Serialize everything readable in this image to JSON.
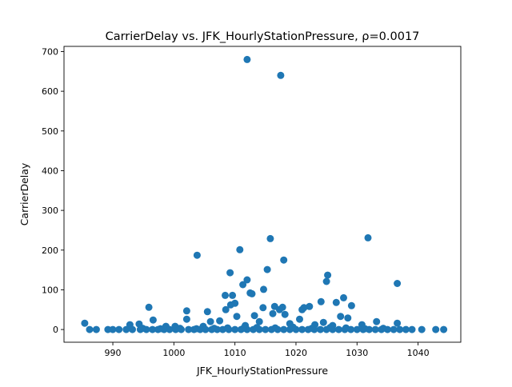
{
  "chart_data": {
    "type": "scatter",
    "title": "CarrierDelay vs. JFK_HourlyStationPressure, ρ=0.0017",
    "xlabel": "JFK_HourlyStationPressure",
    "ylabel": "CarrierDelay",
    "xlim": [
      982.0,
      1047.0
    ],
    "ylim": [
      -32.0,
      713.0
    ],
    "xticks": [
      990,
      1000,
      1010,
      1020,
      1030,
      1040
    ],
    "yticks": [
      0,
      100,
      200,
      300,
      400,
      500,
      600,
      700
    ],
    "grid": false,
    "marker_color": "#1f77b4",
    "points": [
      [
        1012.0,
        680
      ],
      [
        1017.5,
        640
      ],
      [
        1031.8,
        231
      ],
      [
        1015.8,
        229
      ],
      [
        1010.8,
        201
      ],
      [
        1003.8,
        187
      ],
      [
        1018.0,
        175
      ],
      [
        1015.3,
        151
      ],
      [
        1009.2,
        143
      ],
      [
        1025.2,
        137
      ],
      [
        1012.0,
        125
      ],
      [
        1025.0,
        121
      ],
      [
        1036.6,
        116
      ],
      [
        1011.3,
        113
      ],
      [
        1014.7,
        101
      ],
      [
        1012.5,
        92
      ],
      [
        1012.8,
        90
      ],
      [
        1008.4,
        86
      ],
      [
        1009.6,
        86
      ],
      [
        1027.8,
        80
      ],
      [
        1024.1,
        70
      ],
      [
        1026.6,
        68
      ],
      [
        1010.0,
        66
      ],
      [
        1009.3,
        62
      ],
      [
        1022.2,
        58
      ],
      [
        1029.1,
        60
      ],
      [
        1021.3,
        55
      ],
      [
        1016.5,
        58
      ],
      [
        1017.8,
        56
      ],
      [
        995.9,
        56
      ],
      [
        1014.6,
        55
      ],
      [
        1021.0,
        50
      ],
      [
        1008.5,
        50
      ],
      [
        1017.3,
        50
      ],
      [
        1002.1,
        47
      ],
      [
        1005.5,
        45
      ],
      [
        1016.2,
        40
      ],
      [
        1018.2,
        38
      ],
      [
        1010.3,
        33
      ],
      [
        1013.2,
        35
      ],
      [
        1027.3,
        33
      ],
      [
        1028.5,
        29
      ],
      [
        1002.1,
        26
      ],
      [
        996.6,
        24
      ],
      [
        1006.0,
        20
      ],
      [
        1007.5,
        22
      ],
      [
        1014.0,
        20
      ],
      [
        1020.6,
        26
      ],
      [
        1024.5,
        18
      ],
      [
        1033.2,
        20
      ],
      [
        1036.6,
        16
      ],
      [
        985.4,
        16
      ],
      [
        992.8,
        12
      ],
      [
        994.3,
        14
      ],
      [
        1030.8,
        12
      ],
      [
        1019.0,
        15
      ],
      [
        1011.7,
        10
      ],
      [
        1004.8,
        8
      ],
      [
        1023.1,
        12
      ],
      [
        1026.0,
        10
      ],
      [
        998.7,
        8
      ],
      [
        1000.2,
        8
      ],
      [
        986.2,
        0
      ],
      [
        987.3,
        0
      ],
      [
        989.2,
        0
      ],
      [
        990.0,
        0
      ],
      [
        991.0,
        0
      ],
      [
        992.2,
        0
      ],
      [
        993.2,
        0
      ],
      [
        994.5,
        0
      ],
      [
        995.5,
        0
      ],
      [
        996.5,
        0
      ],
      [
        997.4,
        0
      ],
      [
        998.4,
        0
      ],
      [
        999.3,
        0
      ],
      [
        1000.3,
        0
      ],
      [
        1001.2,
        0
      ],
      [
        1002.4,
        0
      ],
      [
        1003.3,
        0
      ],
      [
        1004.3,
        0
      ],
      [
        1005.2,
        0
      ],
      [
        1006.2,
        0
      ],
      [
        1007.1,
        0
      ],
      [
        1008.0,
        0
      ],
      [
        1009.0,
        0
      ],
      [
        1010.0,
        0
      ],
      [
        1011.0,
        0
      ],
      [
        1012.0,
        0
      ],
      [
        1013.0,
        0
      ],
      [
        1014.0,
        0
      ],
      [
        1015.0,
        0
      ],
      [
        1016.0,
        0
      ],
      [
        1017.0,
        0
      ],
      [
        1018.0,
        0
      ],
      [
        1019.0,
        0
      ],
      [
        1020.0,
        0
      ],
      [
        1021.0,
        0
      ],
      [
        1022.0,
        0
      ],
      [
        1023.0,
        0
      ],
      [
        1024.0,
        0
      ],
      [
        1025.0,
        0
      ],
      [
        1026.0,
        0
      ],
      [
        1027.0,
        0
      ],
      [
        1028.0,
        0
      ],
      [
        1029.0,
        0
      ],
      [
        1030.0,
        0
      ],
      [
        1031.0,
        0
      ],
      [
        1032.0,
        0
      ],
      [
        1033.0,
        0
      ],
      [
        1034.0,
        0
      ],
      [
        1035.0,
        0
      ],
      [
        1036.0,
        0
      ],
      [
        1037.0,
        0
      ],
      [
        1038.0,
        0
      ],
      [
        1039.0,
        0
      ],
      [
        1040.6,
        0
      ],
      [
        1042.9,
        0
      ],
      [
        1044.2,
        0
      ],
      [
        1008.8,
        4
      ],
      [
        1011.4,
        3
      ],
      [
        1013.6,
        5
      ],
      [
        1016.6,
        4
      ],
      [
        1019.5,
        6
      ],
      [
        1022.6,
        3
      ],
      [
        1025.6,
        5
      ],
      [
        1028.2,
        4
      ],
      [
        1031.3,
        2
      ],
      [
        1034.3,
        3
      ],
      [
        1006.6,
        3
      ],
      [
        1003.7,
        2
      ],
      [
        1001.0,
        3
      ],
      [
        997.8,
        2
      ],
      [
        994.9,
        3
      ]
    ]
  }
}
